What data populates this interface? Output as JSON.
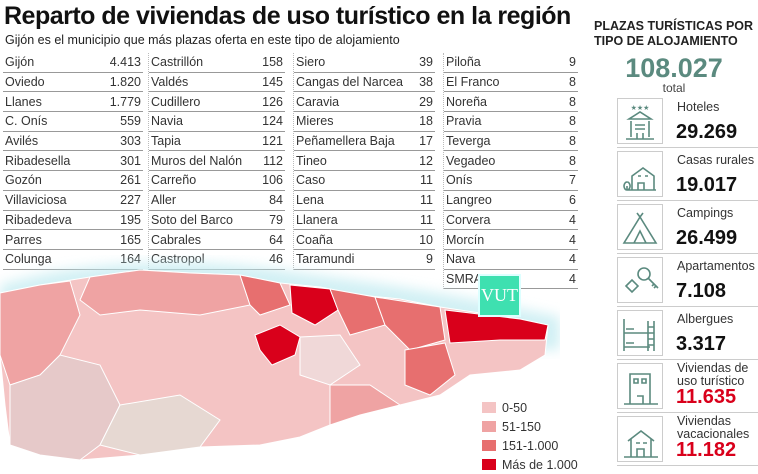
{
  "title": "Reparto de viviendas de uso turístico en la región",
  "subtitle": "Gijón es el municipio que más plazas oferta en este tipo de alojamiento",
  "chart_data": {
    "type": "table",
    "title": "Reparto de viviendas de uso turístico en la región",
    "columns": [
      [
        [
          "Gijón",
          "4.413"
        ],
        [
          "Oviedo",
          "1.820"
        ],
        [
          "Llanes",
          "1.779"
        ],
        [
          "C. Onís",
          "559"
        ],
        [
          "Avilés",
          "303"
        ],
        [
          "Ribadesella",
          "301"
        ],
        [
          "Gozón",
          "261"
        ],
        [
          "Villaviciosa",
          "227"
        ],
        [
          "Ribadedeva",
          "195"
        ],
        [
          "Parres",
          "165"
        ],
        [
          "Colunga",
          "164"
        ]
      ],
      [
        [
          "Castrillón",
          "158"
        ],
        [
          "Valdés",
          "145"
        ],
        [
          "Cudillero",
          "126"
        ],
        [
          "Navia",
          "124"
        ],
        [
          "Tapia",
          "121"
        ],
        [
          "Muros del Nalón",
          "112"
        ],
        [
          "Carreño",
          "106"
        ],
        [
          "Aller",
          "84"
        ],
        [
          "Soto del Barco",
          "79"
        ],
        [
          "Cabrales",
          "64"
        ],
        [
          "Castropol",
          "46"
        ]
      ],
      [
        [
          "Siero",
          "39"
        ],
        [
          "Cangas del Narcea",
          "38"
        ],
        [
          "Caravia",
          "29"
        ],
        [
          "Mieres",
          "18"
        ],
        [
          "Peñamellera Baja",
          "17"
        ],
        [
          "Tineo",
          "12"
        ],
        [
          "Caso",
          "11"
        ],
        [
          "Lena",
          "11"
        ],
        [
          "Llanera",
          "11"
        ],
        [
          "Coaña",
          "10"
        ],
        [
          "Taramundi",
          "9"
        ]
      ],
      [
        [
          "Piloña",
          "9"
        ],
        [
          "El Franco",
          "8"
        ],
        [
          "Noreña",
          "8"
        ],
        [
          "Pravia",
          "8"
        ],
        [
          "Teverga",
          "8"
        ],
        [
          "Vegadeo",
          "8"
        ],
        [
          "Onís",
          "7"
        ],
        [
          "Langreo",
          "6"
        ],
        [
          "Corvera",
          "4"
        ],
        [
          "Morcín",
          "4"
        ],
        [
          "Nava",
          "4"
        ],
        [
          "SMRA",
          "4"
        ]
      ]
    ]
  },
  "map": {
    "logo": "VUT",
    "legend": [
      {
        "label": "0-50",
        "color": "#f4c4c4"
      },
      {
        "label": "51-150",
        "color": "#efa3a3"
      },
      {
        "label": "151-1.000",
        "color": "#e76f6f"
      },
      {
        "label": "Más de 1.000",
        "color": "#d9001b"
      }
    ]
  },
  "panel": {
    "heading_1": "PLAZAS TURÍSTICAS POR",
    "heading_2": "TIPO DE ALOJAMIENTO",
    "total": "108.027",
    "total_label": "total",
    "accent": "#5b8a7f",
    "items": [
      {
        "label": "Hoteles",
        "value": "29.269",
        "icon": "hotel-icon"
      },
      {
        "label": "Casas rurales",
        "value": "19.017",
        "icon": "rural-house-icon"
      },
      {
        "label": "Campings",
        "value": "26.499",
        "icon": "tent-icon"
      },
      {
        "label": "Apartamentos",
        "value": "7.108",
        "icon": "keys-icon"
      },
      {
        "label": "Albergues",
        "value": "3.317",
        "icon": "bunk-bed-icon"
      },
      {
        "label": "Viviendas de uso turístico",
        "value": "11.635",
        "icon": "building-icon",
        "highlight": "#d9001b"
      },
      {
        "label": "Viviendas vacacionales",
        "value": "11.182",
        "icon": "house-icon",
        "highlight": "#d9001b"
      }
    ]
  }
}
